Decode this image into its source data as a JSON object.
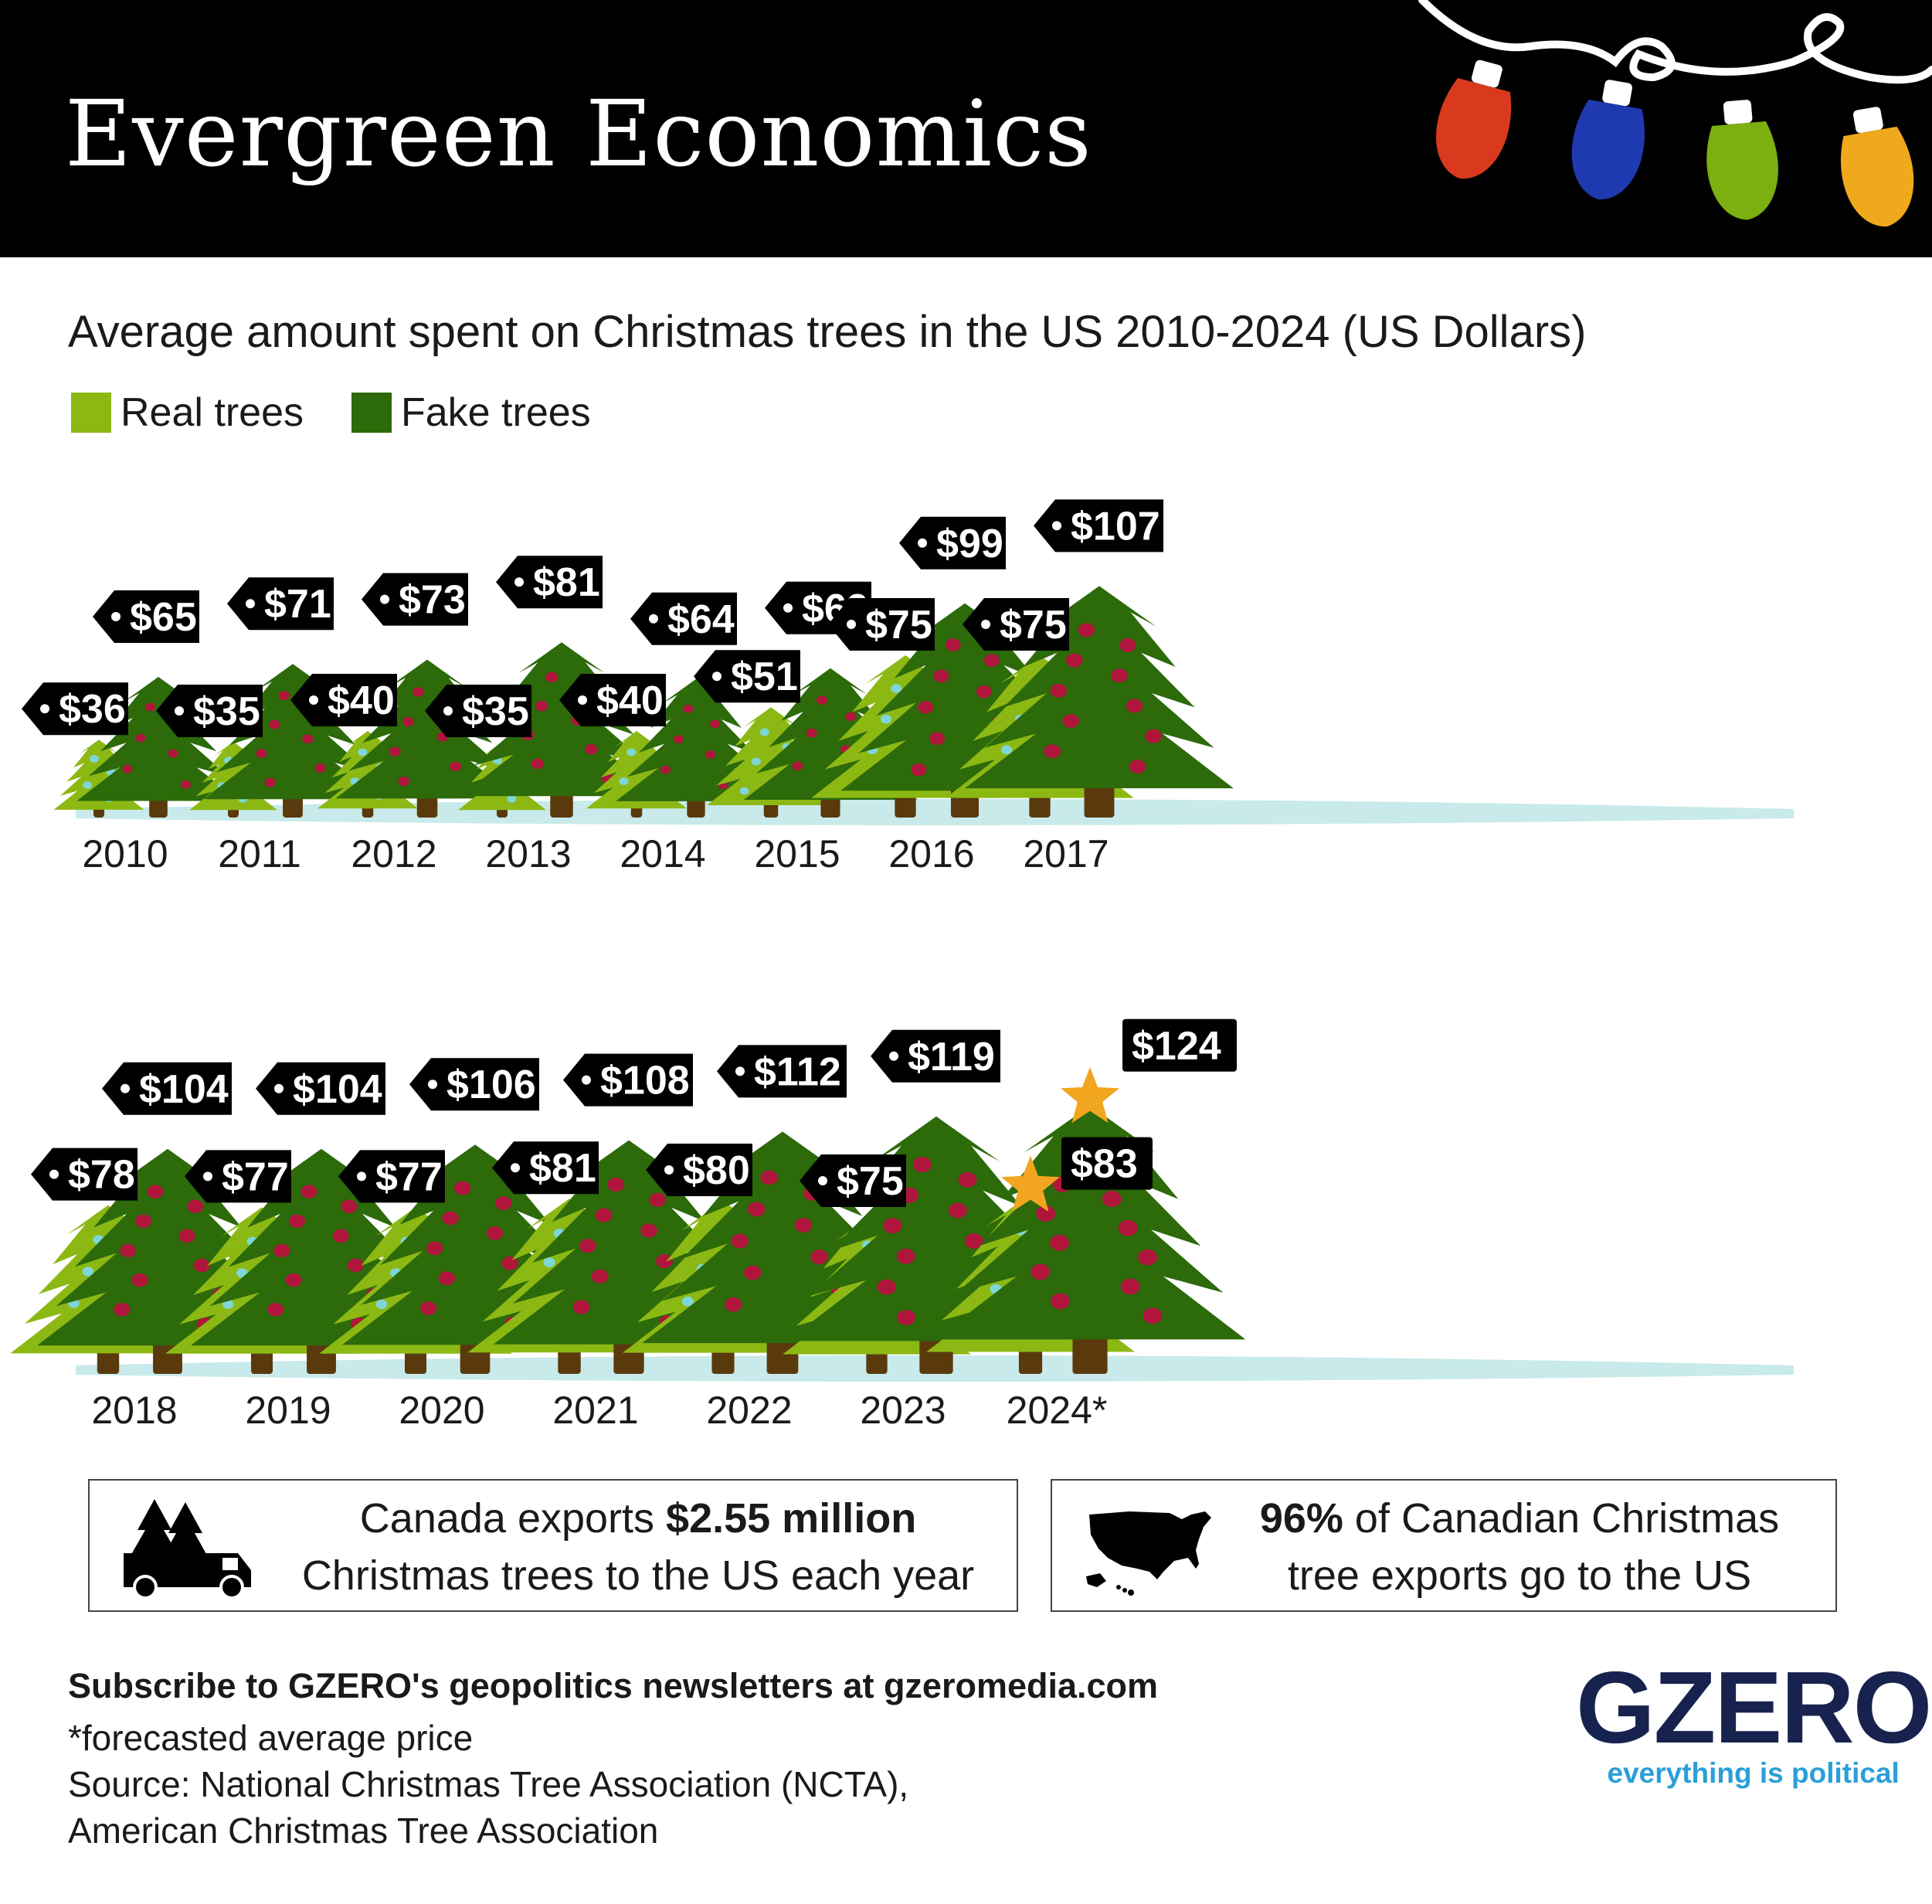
{
  "header": {
    "title": "Evergreen Economics"
  },
  "subtitle": "Average amount spent on Christmas trees in the US 2010-2024 (US Dollars)",
  "legend": {
    "real_label": "Real trees",
    "fake_label": "Fake trees"
  },
  "colors": {
    "real": "#8cb814",
    "fake": "#2c6a0a",
    "trunk": "#5a3a0c",
    "real_ornament": "#7fd6d6",
    "fake_ornament": "#b0163c",
    "ground": "#c8eaea",
    "tag": "#000000",
    "tag_text": "#ffffff",
    "star": "#f2a51e",
    "bulb_red": "#d93a1e",
    "bulb_blue": "#1f39b0",
    "bulb_green": "#7caf10",
    "bulb_yellow": "#f0a81c",
    "logo_blue": "#17234e",
    "tagline_blue": "#2a9fd8"
  },
  "chart_data": {
    "type": "bar",
    "categories": [
      "2010",
      "2011",
      "2012",
      "2013",
      "2014",
      "2015",
      "2016",
      "2017",
      "2018",
      "2019",
      "2020",
      "2021",
      "2022",
      "2023",
      "2024*"
    ],
    "series": [
      {
        "name": "Real trees",
        "values": [
          36,
          35,
          40,
          35,
          40,
          51,
          75,
          75,
          78,
          77,
          77,
          81,
          80,
          75,
          83
        ]
      },
      {
        "name": "Fake trees",
        "values": [
          65,
          71,
          73,
          81,
          64,
          69,
          99,
          107,
          104,
          104,
          106,
          108,
          112,
          119,
          124
        ]
      }
    ],
    "value_labels": {
      "real": [
        "$36",
        "$35",
        "$40",
        "$35",
        "$40",
        "$51",
        "$75",
        "$75",
        "$78",
        "$77",
        "$77",
        "$81",
        "$80",
        "$75",
        "$83"
      ],
      "fake": [
        "$65",
        "$71",
        "$73",
        "$81",
        "$64",
        "$69",
        "$99",
        "$107",
        "$104",
        "$104",
        "$106",
        "$108",
        "$112",
        "$119",
        "$124"
      ]
    },
    "forecast_categories": [
      "2024*"
    ],
    "title": "Average amount spent on Christmas trees in the US 2010-2024 (US Dollars)",
    "legend_position": "top-left",
    "grid": false
  },
  "facts": {
    "box1": {
      "prefix": "Canada exports ",
      "highlight": "$2.55 million",
      "suffix": "Christmas trees to the US each year",
      "icon": "truck-with-trees-icon"
    },
    "box2": {
      "highlight": "96%",
      "line1": " of Canadian Christmas",
      "line2": "tree exports go to the US",
      "icon": "us-map-icon"
    }
  },
  "footer": {
    "subscribe": "Subscribe to GZERO's geopolitics newsletters at gzeromedia.com",
    "note": "*forecasted average price",
    "source1": "Source: National Christmas Tree Association (NCTA),",
    "source2": "American Christmas Tree Association"
  },
  "logo": {
    "name": "GZERO",
    "tagline": "everything is political"
  }
}
